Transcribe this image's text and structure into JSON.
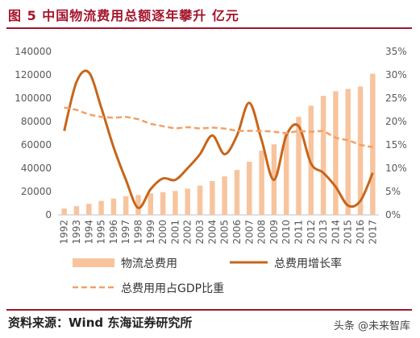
{
  "header": {
    "title": "图 5  中国物流费用总额逐年攀升 亿元"
  },
  "footer": {
    "source": "资料来源：Wind 东海证券研究所",
    "watermark": "头条 @未来智库"
  },
  "colors": {
    "bar": "#f7c49e",
    "line": "#c8651a",
    "dashed": "#f2a066",
    "title": "#a4142b",
    "axis": "#bfbfbf"
  },
  "chart_data": {
    "type": "bar",
    "categories": [
      "1992",
      "1993",
      "1994",
      "1995",
      "1996",
      "1997",
      "1998",
      "1999",
      "2000",
      "2001",
      "2002",
      "2003",
      "2004",
      "2005",
      "2006",
      "2007",
      "2008",
      "2009",
      "2010",
      "2011",
      "2012",
      "2013",
      "2014",
      "2015",
      "2016",
      "2017"
    ],
    "y_left": {
      "ylim": [
        0,
        140000
      ],
      "ticks": [
        "0",
        "20000",
        "40000",
        "60000",
        "80000",
        "100000",
        "120000",
        "140000"
      ]
    },
    "y_right": {
      "ylim": [
        0,
        35
      ],
      "ticks": [
        "0%",
        "5%",
        "10%",
        "15%",
        "20%",
        "25%",
        "30%",
        "35%"
      ]
    },
    "series": [
      {
        "name": "物流总费用",
        "type": "bar",
        "axis": "left",
        "values": [
          5500,
          7500,
          9500,
          12000,
          14000,
          16000,
          17000,
          18500,
          19500,
          20500,
          22500,
          25000,
          29000,
          33000,
          38500,
          45500,
          55000,
          60500,
          70000,
          84000,
          93500,
          102000,
          106000,
          108000,
          110000,
          121000
        ]
      },
      {
        "name": "总费用增长率",
        "type": "line",
        "axis": "right",
        "values": [
          18,
          28.5,
          30.5,
          23,
          14.5,
          7.5,
          1.5,
          5.5,
          7.8,
          7.5,
          10,
          13,
          17,
          13,
          17,
          24,
          16,
          7.5,
          17,
          19,
          11,
          9,
          6,
          2,
          3,
          9
        ]
      },
      {
        "name": "总费用用占GDP比重",
        "type": "line-dashed",
        "axis": "right",
        "values": [
          23,
          22.5,
          21.5,
          21,
          20.8,
          21,
          20.5,
          19.5,
          19,
          18.5,
          18.8,
          18.5,
          18.7,
          18.5,
          18,
          18,
          18,
          17.8,
          17.5,
          18,
          17.8,
          18,
          16.5,
          16,
          15,
          14.5
        ]
      }
    ],
    "legend": [
      "物流总费用",
      "总费用增长率",
      "总费用用占GDP比重"
    ],
    "legend_position": "bottom"
  }
}
